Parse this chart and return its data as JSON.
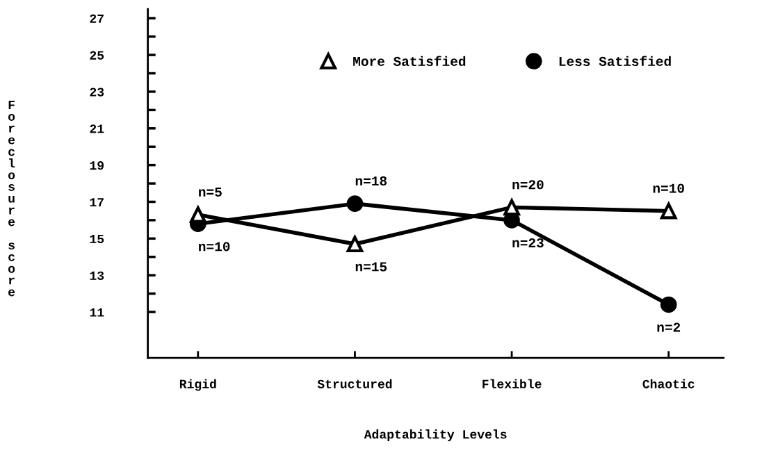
{
  "chart_data": {
    "type": "line",
    "xlabel": "Adaptability Levels",
    "ylabel": "Foreclosure score",
    "categories": [
      "Rigid",
      "Structured",
      "Flexible",
      "Chaotic"
    ],
    "series": [
      {
        "name": "More Satisfied",
        "color": "#000000",
        "marker": "triangle",
        "values": [
          16.3,
          14.7,
          16.7,
          16.5
        ]
      },
      {
        "name": "Less Satisfied",
        "color": "#000000",
        "marker": "circle",
        "values": [
          15.8,
          16.9,
          16.0,
          11.4
        ]
      }
    ],
    "ylim": [
      8.5,
      27.5
    ],
    "yticks": [
      {
        "value": 11,
        "label": "11"
      },
      {
        "value": 12,
        "label": null
      },
      {
        "value": 13,
        "label": "13"
      },
      {
        "value": 14,
        "label": null
      },
      {
        "value": 15,
        "label": "15"
      },
      {
        "value": 16,
        "label": null
      },
      {
        "value": 17,
        "label": "17"
      },
      {
        "value": 18,
        "label": null
      },
      {
        "value": 19,
        "label": "19"
      },
      {
        "value": 20,
        "label": null
      },
      {
        "value": 21,
        "label": "21"
      },
      {
        "value": 22,
        "label": null
      },
      {
        "value": 23,
        "label": "23"
      },
      {
        "value": 24,
        "label": null
      },
      {
        "value": 25,
        "label": "25"
      },
      {
        "value": 26,
        "label": null
      },
      {
        "value": 27,
        "label": "27"
      }
    ],
    "annotations": [
      {
        "text": "n=5",
        "x": "Rigid",
        "y": 16.3
      },
      {
        "text": "n=10",
        "x": "Rigid",
        "y": 15.8
      },
      {
        "text": "n=15",
        "x": "Structured",
        "y": 14.7
      },
      {
        "text": "n=18",
        "x": "Structured",
        "y": 16.9
      },
      {
        "text": "n=20",
        "x": "Flexible",
        "y": 16.7
      },
      {
        "text": "n=23",
        "x": "Flexible",
        "y": 16.0
      },
      {
        "text": "n=10",
        "x": "Chaotic",
        "y": 16.5
      },
      {
        "text": "n=2",
        "x": "Chaotic",
        "y": 11.4
      }
    ],
    "grid": false,
    "legend": "top",
    "line_style": "solid"
  }
}
